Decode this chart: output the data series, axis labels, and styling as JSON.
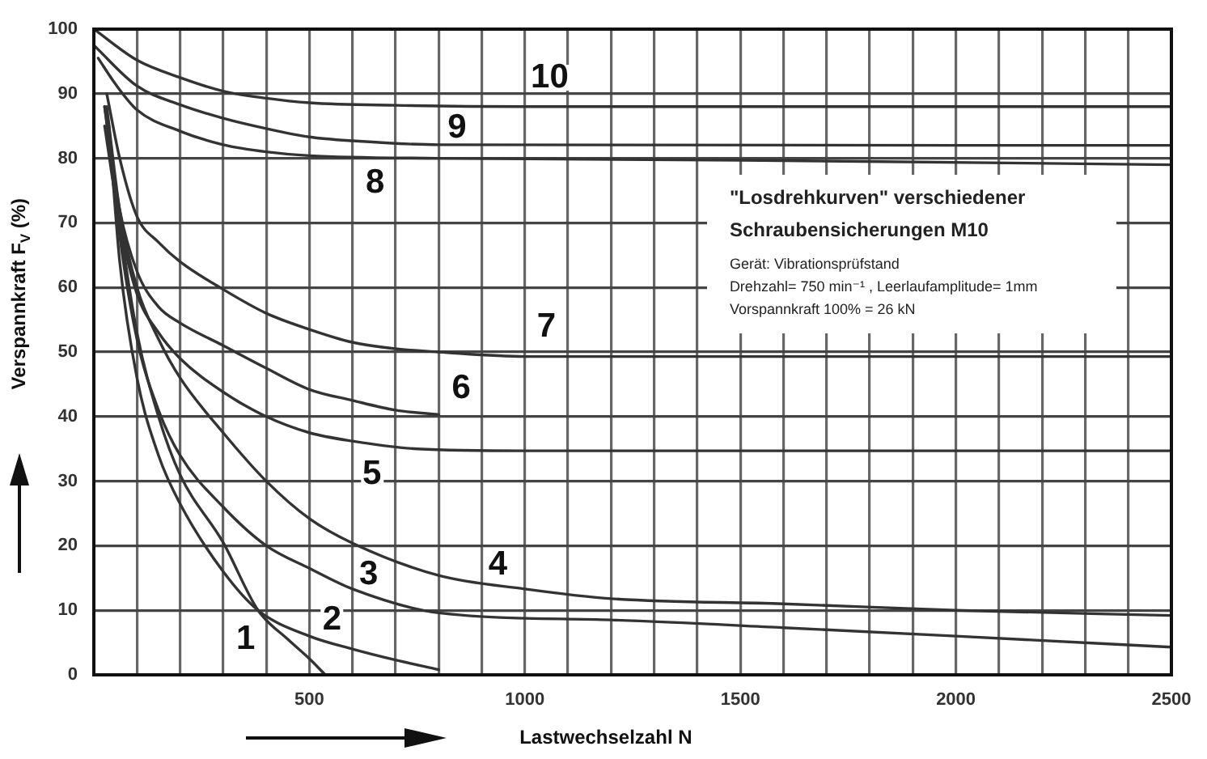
{
  "chart_data": {
    "type": "line",
    "title": "\"Losdrehkurven\" verschiedener Schraubensicherungen M10",
    "xlabel": "Lastwechselzahl N",
    "ylabel": "Verspannkraft F$_{V}$ (%)",
    "annotations": [
      "Gerät: Vibrationsprüfstand",
      "Drehzahl= 750 min⁻¹ , Leerlaufamplitude= 1mm",
      "Vorspannkraft 100% = 26 kN"
    ],
    "xlim": [
      0,
      2500
    ],
    "ylim": [
      0,
      100
    ],
    "xticks": [
      {
        "value": 100,
        "label": null
      },
      {
        "value": 200,
        "label": null
      },
      {
        "value": 300,
        "label": null
      },
      {
        "value": 400,
        "label": null
      },
      500,
      {
        "value": 600,
        "label": null
      },
      {
        "value": 700,
        "label": null
      },
      {
        "value": 800,
        "label": null
      },
      {
        "value": 900,
        "label": null
      },
      1000,
      {
        "value": 1100,
        "label": null
      },
      {
        "value": 1200,
        "label": null
      },
      {
        "value": 1300,
        "label": null
      },
      {
        "value": 1400,
        "label": null
      },
      1500,
      {
        "value": 1600,
        "label": null
      },
      {
        "value": 1700,
        "label": null
      },
      {
        "value": 1800,
        "label": null
      },
      {
        "value": 1900,
        "label": null
      },
      2000,
      {
        "value": 2100,
        "label": null
      },
      {
        "value": 2200,
        "label": null
      },
      {
        "value": 2300,
        "label": null
      },
      {
        "value": 2400,
        "label": null
      },
      2500
    ],
    "yticks": [
      0,
      10,
      20,
      30,
      40,
      50,
      60,
      70,
      80,
      90,
      100
    ],
    "grid": true,
    "series": [
      {
        "name": "1",
        "color": "#333333",
        "x": [
          25,
          60,
          100,
          150,
          200,
          300,
          381,
          450,
          500,
          537
        ],
        "values": [
          88,
          70,
          53,
          40,
          31,
          20.5,
          10,
          5.5,
          2.5,
          0
        ]
      },
      {
        "name": "2",
        "color": "#333333",
        "x": [
          35,
          60,
          100,
          150,
          200,
          300,
          381,
          500,
          600,
          700,
          800
        ],
        "values": [
          85,
          64,
          46,
          34,
          26.5,
          16,
          10,
          6,
          4,
          2.3,
          0.8
        ]
      },
      {
        "name": "3",
        "color": "#333333",
        "x": [
          30,
          60,
          100,
          150,
          200,
          300,
          400,
          500,
          600,
          800,
          1200,
          1600,
          2000,
          2500
        ],
        "values": [
          86,
          68,
          52,
          41,
          34,
          26,
          20,
          16.5,
          13.3,
          9.6,
          8.5,
          7.3,
          6,
          4.3
        ]
      },
      {
        "name": "4",
        "color": "#333333",
        "x": [
          30,
          60,
          100,
          150,
          200,
          300,
          400,
          500,
          600,
          800,
          1000,
          1200,
          1600,
          2000,
          2500
        ],
        "values": [
          88,
          72,
          60,
          52,
          46,
          37.5,
          30,
          24.2,
          20.4,
          15.4,
          13.3,
          11.8,
          11,
          10,
          9.2
        ]
      },
      {
        "name": "5",
        "color": "#333333",
        "x": [
          25,
          60,
          100,
          150,
          200,
          300,
          400,
          500,
          600,
          750,
          1000,
          2500
        ],
        "values": [
          85,
          70,
          59,
          53,
          49,
          43.8,
          40,
          37.5,
          36.2,
          35,
          34.7,
          34.7
        ]
      },
      {
        "name": "6",
        "color": "#333333",
        "x": [
          25,
          60,
          100,
          150,
          200,
          300,
          400,
          500,
          600,
          700,
          800
        ],
        "values": [
          88,
          72,
          62.5,
          57,
          54.5,
          51,
          47.5,
          44.2,
          42.5,
          41,
          40.3
        ]
      },
      {
        "name": "7",
        "color": "#333333",
        "x": [
          30,
          60,
          100,
          150,
          200,
          300,
          400,
          500,
          600,
          700,
          800,
          1000,
          2500
        ],
        "values": [
          90,
          80,
          71,
          67,
          64,
          59.7,
          56,
          53.5,
          51.5,
          50.5,
          50,
          49.3,
          49.3
        ]
      },
      {
        "name": "8",
        "color": "#333333",
        "x": [
          10,
          50,
          100,
          200,
          300,
          400,
          500,
          800,
          1500,
          2500
        ],
        "values": [
          95.5,
          91.5,
          87.5,
          84.2,
          82.1,
          81,
          80.4,
          80,
          79.7,
          79
        ]
      },
      {
        "name": "9",
        "color": "#333333",
        "x": [
          0,
          100,
          200,
          300,
          400,
          500,
          600,
          800,
          2500
        ],
        "values": [
          97.5,
          91.2,
          88.3,
          86.2,
          84.6,
          83.3,
          82.7,
          82.1,
          82
        ]
      },
      {
        "name": "10",
        "color": "#333333",
        "x": [
          0,
          100,
          200,
          300,
          400,
          500,
          700,
          1000,
          2500
        ],
        "values": [
          100,
          95.2,
          92.5,
          90.4,
          89.3,
          88.6,
          88.2,
          88,
          88
        ]
      }
    ]
  }
}
